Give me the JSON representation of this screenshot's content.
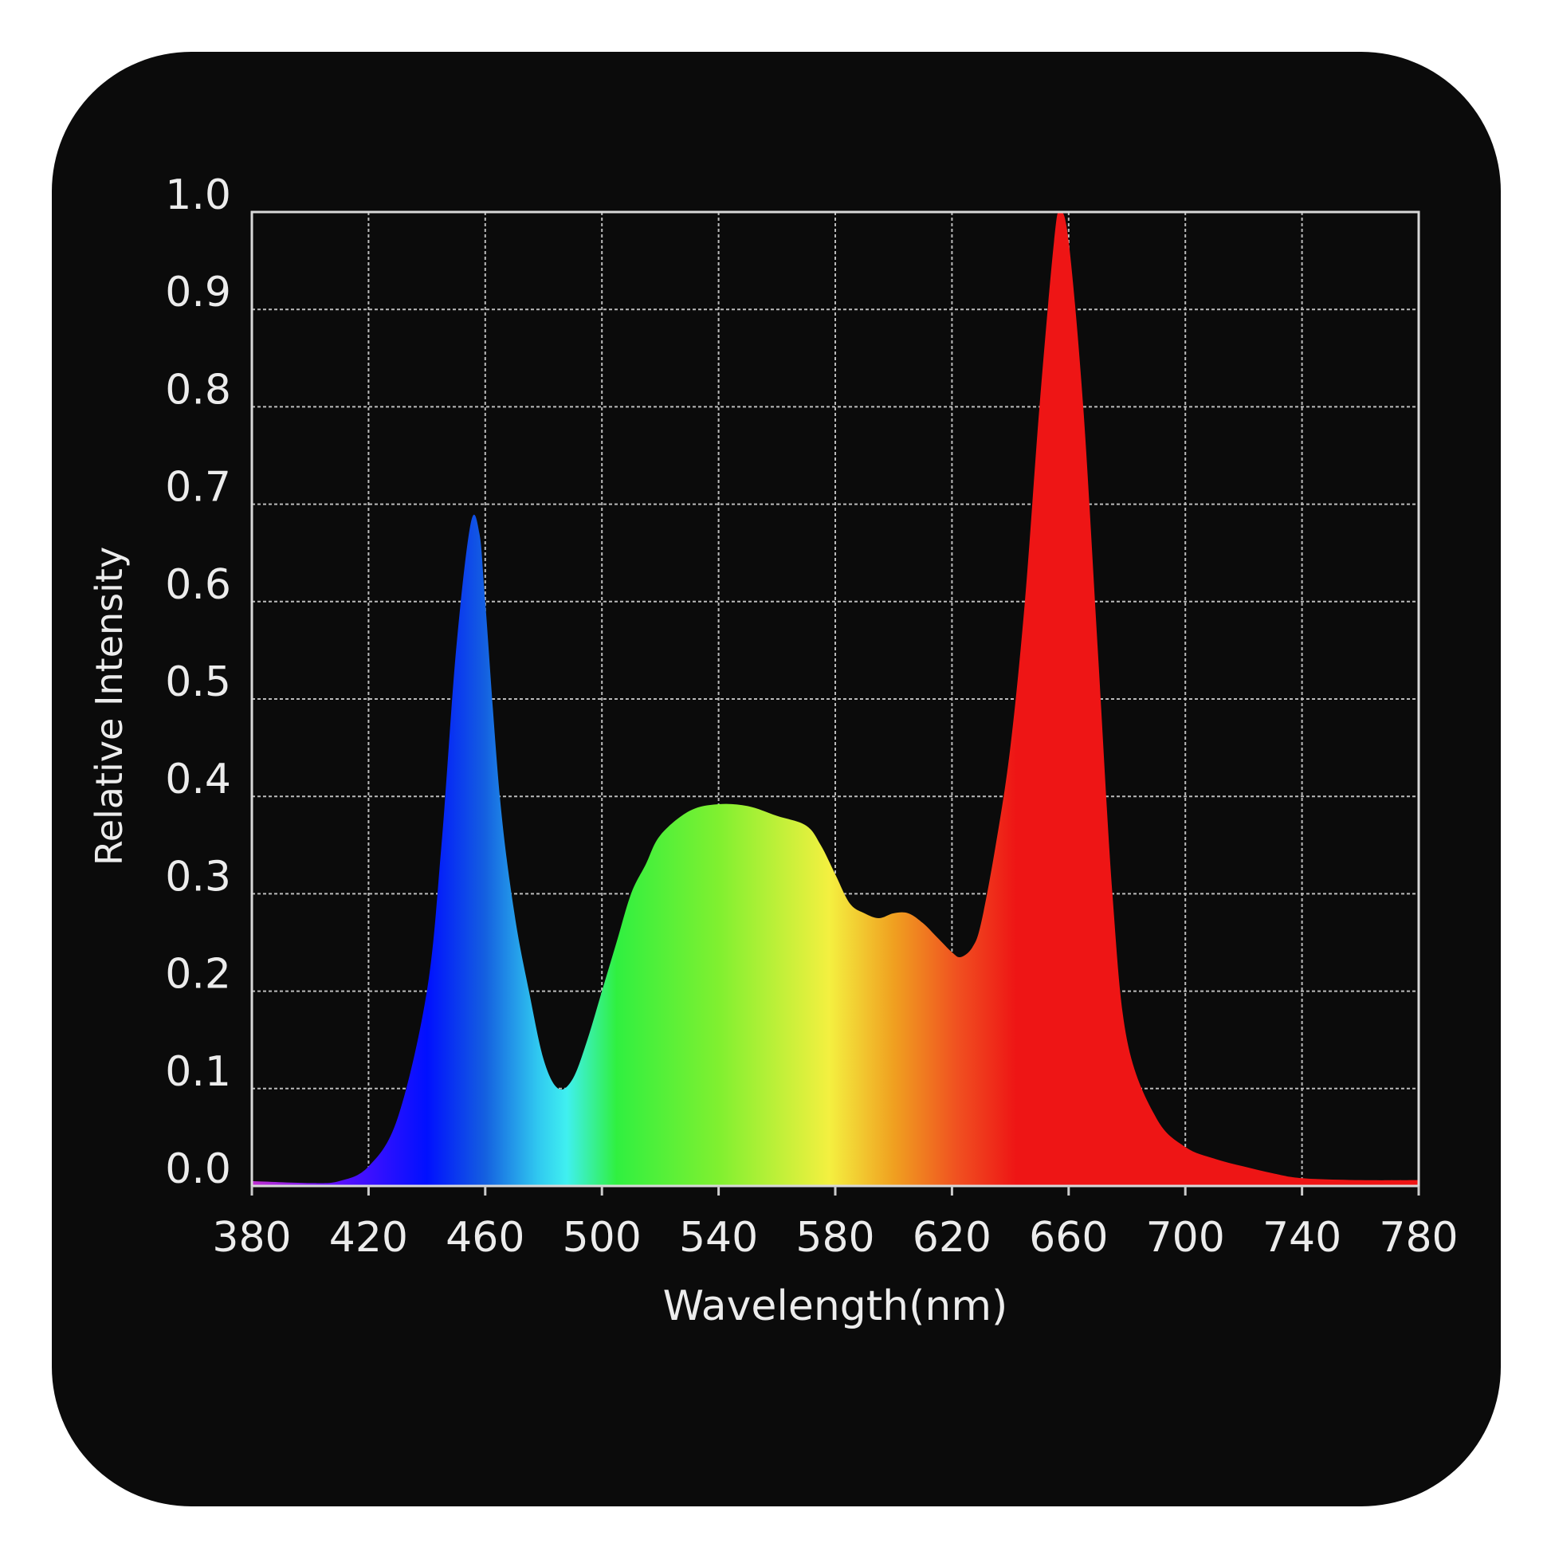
{
  "chart_data": {
    "type": "area",
    "title": "",
    "xlabel": "Wavelength(nm)",
    "ylabel": "Relative Intensity",
    "xlim": [
      380,
      780
    ],
    "ylim": [
      0,
      1.0
    ],
    "grid": true,
    "x_ticks": [
      "380",
      "420",
      "460",
      "500",
      "540",
      "580",
      "620",
      "660",
      "700",
      "740",
      "780"
    ],
    "y_ticks": [
      "0.0",
      "0.1",
      "0.2",
      "0.3",
      "0.4",
      "0.5",
      "0.6",
      "0.7",
      "0.8",
      "0.9",
      "1.0"
    ],
    "fill": "spectral gradient by wavelength",
    "gradient": [
      {
        "nm": 380,
        "color": "#c030d0"
      },
      {
        "nm": 410,
        "color": "#5a10ff"
      },
      {
        "nm": 440,
        "color": "#0010ff"
      },
      {
        "nm": 460,
        "color": "#1460e0"
      },
      {
        "nm": 478,
        "color": "#30c8f0"
      },
      {
        "nm": 488,
        "color": "#40f0f0"
      },
      {
        "nm": 505,
        "color": "#30f040"
      },
      {
        "nm": 540,
        "color": "#80f030"
      },
      {
        "nm": 578,
        "color": "#f4f040"
      },
      {
        "nm": 600,
        "color": "#f0a020"
      },
      {
        "nm": 622,
        "color": "#f05020"
      },
      {
        "nm": 642,
        "color": "#ee1515"
      },
      {
        "nm": 780,
        "color": "#ee1515"
      }
    ],
    "x": [
      380,
      400,
      410,
      420,
      430,
      440,
      445,
      450,
      455,
      458,
      460,
      465,
      470,
      475,
      480,
      485,
      490,
      495,
      500,
      505,
      510,
      515,
      520,
      530,
      540,
      550,
      560,
      570,
      575,
      580,
      585,
      590,
      595,
      600,
      605,
      610,
      615,
      620,
      623,
      627,
      630,
      635,
      640,
      645,
      650,
      655,
      657,
      660,
      665,
      670,
      675,
      680,
      690,
      700,
      710,
      720,
      730,
      740,
      760,
      780
    ],
    "y": [
      0.005,
      0.003,
      0.005,
      0.02,
      0.07,
      0.2,
      0.35,
      0.55,
      0.68,
      0.67,
      0.6,
      0.4,
      0.28,
      0.2,
      0.13,
      0.1,
      0.11,
      0.15,
      0.2,
      0.25,
      0.3,
      0.33,
      0.36,
      0.385,
      0.392,
      0.39,
      0.38,
      0.37,
      0.35,
      0.32,
      0.29,
      0.28,
      0.275,
      0.28,
      0.28,
      0.27,
      0.255,
      0.24,
      0.235,
      0.245,
      0.27,
      0.35,
      0.45,
      0.6,
      0.8,
      0.97,
      1.0,
      0.97,
      0.8,
      0.55,
      0.3,
      0.15,
      0.07,
      0.04,
      0.028,
      0.02,
      0.013,
      0.008,
      0.006,
      0.006
    ]
  }
}
